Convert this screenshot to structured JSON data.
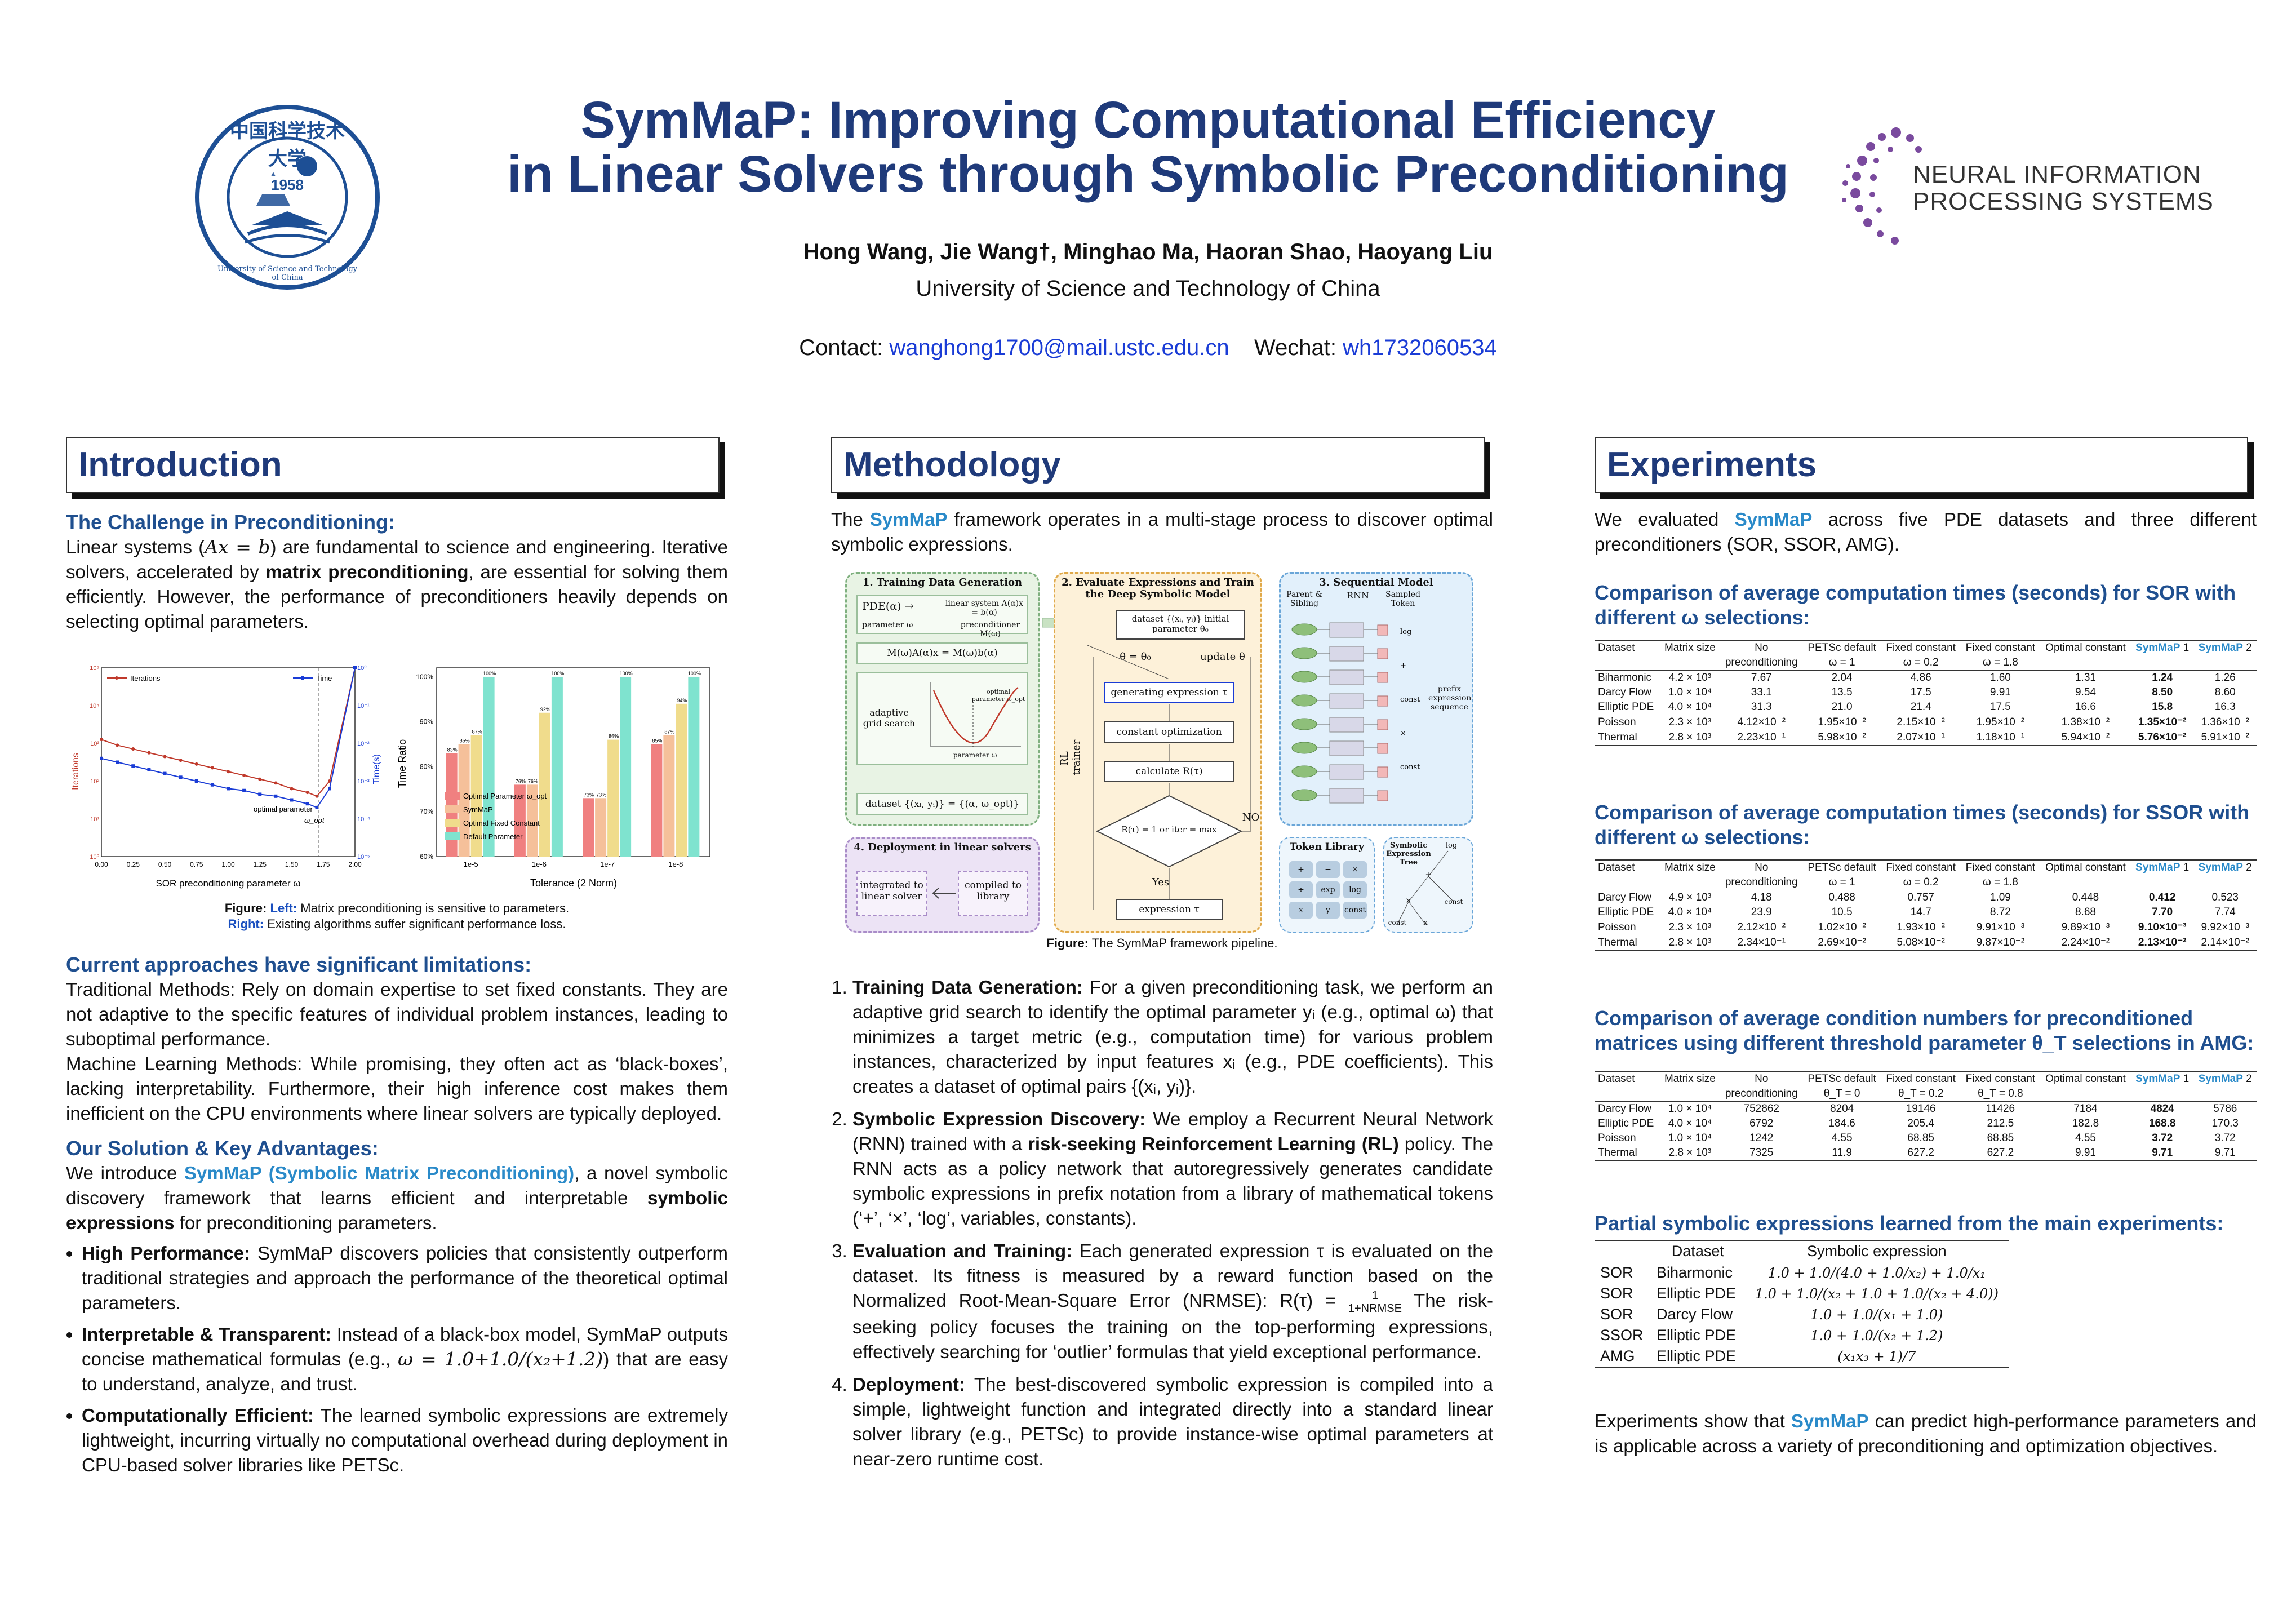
{
  "header": {
    "title_line1": "SymMaP: Improving Computational Efficiency",
    "title_line2": "in Linear Solvers through Symbolic Preconditioning",
    "authors": "Hong Wang, Jie Wang†, Minghao Ma, Haoran Shao, Haoyang Liu",
    "affiliation": "University of Science and Technology of China",
    "contact_label": "Contact:",
    "email": "wanghong1700@mail.ustc.edu.cn",
    "wechat_label": "Wechat:",
    "wechat": "wh1732060534",
    "ustc_logo": {
      "year": "1958",
      "motto": "University of Science and Technology of China",
      "cn": "中国科学技术大学"
    },
    "neurips_logo": {
      "line1": "NEURAL INFORMATION",
      "line2": "PROCESSING SYSTEMS"
    }
  },
  "intro": {
    "heading": "Introduction",
    "sub1": "The Challenge in Preconditioning:",
    "p1a": "Linear systems (",
    "p1math": "Ax = b",
    "p1b": ") are fundamental to science and engineering. Iterative solvers, accelerated by ",
    "p1bold": "matrix preconditioning",
    "p1c": ", are essential for solving them efficiently. However, the performance of preconditioners heavily depends on selecting optimal parameters.",
    "fig_caption_fig": "Figure:",
    "fig_caption_left": "Left:",
    "fig_caption_left_text": "Matrix preconditioning is sensitive to parameters.",
    "fig_caption_right": "Right:",
    "fig_caption_right_text": "Existing algorithms suffer significant performance loss.",
    "sub2": "Current approaches have significant limitations:",
    "p2": "Traditional Methods: Rely on domain expertise to set fixed constants. They are not adaptive to the specific features of individual problem instances, leading to suboptimal performance.",
    "p3": "Machine Learning Methods: While promising, they often act as ‘black-boxes’, lacking interpretability. Furthermore, their high inference cost makes them inefficient on the CPU environments where linear solvers are typically deployed.",
    "sub3": "Our Solution & Key Advantages:",
    "p4a": "We introduce ",
    "p4acc": "SymMaP (Symbolic Matrix Preconditioning)",
    "p4b": ", a novel symbolic discovery framework that learns efficient and interpretable ",
    "p4bold": "symbolic expressions",
    "p4c": " for preconditioning parameters.",
    "b1h": "High Performance:",
    "b1": " SymMaP discovers policies that consistently outperform traditional strategies and approach the performance of the theoretical optimal parameters.",
    "b2h": "Interpretable & Transparent:",
    "b2a": " Instead of a black-box model, SymMaP outputs concise mathematical formulas (e.g., ",
    "b2math": "ω = 1.0+1.0/(x₂+1.2)",
    "b2b": ") that are easy to understand, analyze, and trust.",
    "b3h": "Computationally Efficient:",
    "b3": " The learned symbolic expressions are extremely lightweight, incurring virtually no computational overhead during deployment in CPU-based solver libraries like PETSc."
  },
  "chart_data": [
    {
      "type": "line",
      "title": "",
      "xlabel": "SOR preconditioning parameter ω",
      "ylabel": "Iterations",
      "ylabel_right": "Time(s)",
      "x": [
        0.0,
        0.125,
        0.25,
        0.375,
        0.5,
        0.625,
        0.75,
        0.875,
        1.0,
        1.125,
        1.25,
        1.375,
        1.5,
        1.625,
        1.7,
        1.8,
        2.0
      ],
      "series": [
        {
          "name": "Iterations",
          "color": "#c0392b",
          "values": [
            3.1,
            2.95,
            2.85,
            2.75,
            2.65,
            2.55,
            2.45,
            2.35,
            2.25,
            2.15,
            2.05,
            1.95,
            1.8,
            1.7,
            1.6,
            2.0,
            5.0
          ]
        },
        {
          "name": "Time",
          "color": "#1a3cd6",
          "values": [
            2.6,
            2.5,
            2.4,
            2.3,
            2.2,
            2.1,
            2.0,
            1.9,
            1.8,
            1.75,
            1.65,
            1.6,
            1.5,
            1.4,
            1.3,
            1.8,
            5.0
          ]
        }
      ],
      "xticks": [
        "0.00",
        "0.25",
        "0.50",
        "0.75",
        "1.00",
        "1.25",
        "1.50",
        "1.75",
        "2.00"
      ],
      "yticks": [
        "10⁰",
        "10¹",
        "10²",
        "10³",
        "10⁴",
        "10⁵"
      ],
      "yticks_right": [
        "10⁻⁵",
        "10⁻⁴",
        "10⁻³",
        "10⁻²",
        "10⁻¹",
        "10⁰"
      ],
      "annotation": "optimal parameter",
      "annotation2": "ω_opt",
      "ylim": [
        0,
        5
      ],
      "xlim": [
        0,
        2
      ]
    },
    {
      "type": "bar",
      "title": "",
      "xlabel": "Tolerance (2 Norm)",
      "ylabel": "Time Ratio",
      "categories": [
        "1e-5",
        "1e-6",
        "1e-7",
        "1e-8"
      ],
      "series": [
        {
          "name": "Optimal Parameter ω_opt",
          "color": "#f08080",
          "values": [
            83,
            76,
            73,
            85
          ]
        },
        {
          "name": "SymMaP",
          "color": "#f5c09a",
          "values": [
            85,
            76,
            73,
            87
          ]
        },
        {
          "name": "Optimal Fixed Constant",
          "color": "#f0dc8c",
          "values": [
            87,
            92,
            86,
            94
          ]
        },
        {
          "name": "Default Parameter",
          "color": "#7fe3cf",
          "values": [
            100,
            100,
            100,
            100
          ]
        }
      ],
      "labels": [
        [
          "83%",
          "85%",
          "87%",
          "100%"
        ],
        [
          "76%",
          "76%",
          "92%",
          "100%"
        ],
        [
          "73%",
          "73%",
          "86%",
          "100%"
        ],
        [
          "85%",
          "87%",
          "94%",
          "100%"
        ]
      ],
      "yticks": [
        "60%",
        "70%",
        "80%",
        "90%",
        "100%"
      ],
      "ylim": [
        60,
        102
      ]
    }
  ],
  "method": {
    "heading": "Methodology",
    "intro_a": "The ",
    "intro_acc": "SymMaP",
    "intro_b": " framework operates in a multi-stage process to discover optimal symbolic expressions.",
    "fig_caption_fig": "Figure:",
    "fig_caption_text": "The SymMaP framework pipeline.",
    "diagram": {
      "b1_title": "1. Training Data Generation",
      "b1_pde": "PDE(α) →",
      "b1_linsys": "linear system A(α)x = b(α)",
      "b1_param": "parameter ω",
      "b1_precond": "preconditioner M(ω)",
      "b1_eq": "M(ω)A(α)x = M(ω)b(α)",
      "b1_grid": "adaptive grid search",
      "b1_curve": "optimal parameter ω_opt",
      "b1_axis": "parameter ω",
      "b1_ylab": "computation time",
      "b1_dataset": "dataset {(xᵢ, yᵢ)} = {(α, ω_opt)}",
      "b2_title": "2. Evaluate Expressions and Train the Deep Symbolic Model",
      "b2_dataset": "dataset {(xᵢ, yᵢ)} initial parameter θ₀",
      "b2_theta": "θ = θ₀",
      "b2_update": "update θ",
      "b2_gen": "generating expression τ",
      "b2_const": "constant optimization",
      "b2_calc": "calculate R(τ)",
      "b2_cond": "R(τ) = 1 or iter = max",
      "b2_no": "NO",
      "b2_yes": "Yes",
      "b2_expr": "expression τ",
      "b2_rl": "RL trainer",
      "b3_title": "3. Sequential Model",
      "b3_parent": "Parent & Sibling",
      "b3_rnn": "RNN",
      "b3_sampled": "Sampled Token",
      "b3_prefix": "prefix expression sequence",
      "b3_tokens": [
        "log",
        "+",
        "const",
        "×",
        "const"
      ],
      "b4_title": "Token Library",
      "b4_tokens": [
        "+",
        "−",
        "×",
        "÷",
        "exp",
        "log",
        "x",
        "y",
        "const"
      ],
      "b5_title": "Symbolic Expression Tree",
      "b5_nodes": [
        "log",
        "+",
        "const",
        "×",
        "const",
        "x"
      ],
      "b6_title": "4. Deployment in linear solvers",
      "b6_left": "integrated to linear solver",
      "b6_right": "compiled to library"
    },
    "s1h": "Training Data Generation:",
    "s1": " For a given preconditioning task, we perform an adaptive grid search to identify the optimal parameter yᵢ (e.g., optimal ω) that minimizes a target metric (e.g., computation time) for various problem instances, characterized by input features xᵢ (e.g., PDE coefficients). This creates a dataset of optimal pairs {(xᵢ, yᵢ)}.",
    "s2h": "Symbolic Expression Discovery:",
    "s2a": " We employ a Recurrent Neural Network (RNN) trained with a ",
    "s2bold": "risk-seeking Reinforcement Learning (RL)",
    "s2b": " policy. The RNN acts as a policy network that autoregressively generates candidate symbolic expressions in prefix notation from a library of mathematical tokens (‘+’, ‘×’, ‘log’, variables, constants).",
    "s3h": "Evaluation and Training:",
    "s3a": " Each generated expression τ is evaluated on the dataset. Its fitness is measured by a reward function based on the Normalized Root-Mean-Square Error (NRMSE): R(τ) = ",
    "s3frac_num": "1",
    "s3frac_den": "1+NRMSE",
    "s3b": " The risk-seeking policy focuses the training on the top-performing expressions, effectively searching for ‘outlier’ formulas that yield exceptional performance.",
    "s4h": "Deployment:",
    "s4": " The best-discovered symbolic expression is compiled into a simple, lightweight function and integrated directly into a standard linear solver library (e.g., PETSc) to provide instance-wise optimal parameters at near-zero runtime cost."
  },
  "exp": {
    "heading": "Experiments",
    "intro_a": "We evaluated ",
    "intro_acc": "SymMaP",
    "intro_b": " across five PDE datasets and three different preconditioners (SOR, SSOR, AMG).",
    "t1_title": "Comparison of average computation times (seconds) for SOR with different ω selections:",
    "t2_title": "Comparison of average computation times (seconds) for SSOR with different ω selections:",
    "t3_title": "Comparison of average condition numbers for preconditioned matrices using different threshold parameter θ_T selections in AMG:",
    "hdr": {
      "dataset": "Dataset",
      "matrix": "Matrix size",
      "no": "No",
      "precond": "preconditioning",
      "petsc": "PETSc default",
      "fixed": "Fixed constant",
      "optimal": "Optimal constant",
      "symmap1": "SymMaP",
      "one": "1",
      "symmap2": "SymMaP",
      "two": "2"
    },
    "t1_sub": [
      "ω = 1",
      "ω = 0.2",
      "ω = 1.8"
    ],
    "t1_rows": [
      [
        "Biharmonic",
        "4.2 × 10³",
        "7.67",
        "2.04",
        "4.86",
        "1.60",
        "1.31",
        "1.24",
        "1.26"
      ],
      [
        "Darcy Flow",
        "1.0 × 10⁴",
        "33.1",
        "13.5",
        "17.5",
        "9.91",
        "9.54",
        "8.50",
        "8.60"
      ],
      [
        "Elliptic PDE",
        "4.0 × 10⁴",
        "31.3",
        "21.0",
        "21.4",
        "17.5",
        "16.6",
        "15.8",
        "16.3"
      ],
      [
        "Poisson",
        "2.3 × 10³",
        "4.12×10⁻²",
        "1.95×10⁻²",
        "2.15×10⁻²",
        "1.95×10⁻²",
        "1.38×10⁻²",
        "1.35×10⁻²",
        "1.36×10⁻²"
      ],
      [
        "Thermal",
        "2.8 × 10³",
        "2.23×10⁻¹",
        "5.98×10⁻²",
        "2.07×10⁻¹",
        "1.18×10⁻¹",
        "5.94×10⁻²",
        "5.76×10⁻²",
        "5.91×10⁻²"
      ]
    ],
    "t2_sub": [
      "ω = 1",
      "ω = 0.2",
      "ω = 1.8"
    ],
    "t2_rows": [
      [
        "Darcy Flow",
        "4.9 × 10³",
        "4.18",
        "0.488",
        "0.757",
        "1.09",
        "0.448",
        "0.412",
        "0.523"
      ],
      [
        "Elliptic PDE",
        "4.0 × 10⁴",
        "23.9",
        "10.5",
        "14.7",
        "8.72",
        "8.68",
        "7.70",
        "7.74"
      ],
      [
        "Poisson",
        "2.3 × 10³",
        "2.12×10⁻²",
        "1.02×10⁻²",
        "1.93×10⁻²",
        "9.91×10⁻³",
        "9.89×10⁻³",
        "9.10×10⁻³",
        "9.92×10⁻³"
      ],
      [
        "Thermal",
        "2.8 × 10³",
        "2.34×10⁻¹",
        "2.69×10⁻²",
        "5.08×10⁻²",
        "9.87×10⁻²",
        "2.24×10⁻²",
        "2.13×10⁻²",
        "2.14×10⁻²"
      ]
    ],
    "t3_sub": [
      "θ_T = 0",
      "θ_T = 0.2",
      "θ_T = 0.8"
    ],
    "t3_rows": [
      [
        "Darcy Flow",
        "1.0 × 10⁴",
        "752862",
        "8204",
        "19146",
        "11426",
        "7184",
        "4824",
        "5786"
      ],
      [
        "Elliptic PDE",
        "4.0 × 10⁴",
        "6792",
        "184.6",
        "205.4",
        "212.5",
        "182.8",
        "168.8",
        "170.3"
      ],
      [
        "Poisson",
        "1.0 × 10⁴",
        "1242",
        "4.55",
        "68.85",
        "68.85",
        "4.55",
        "3.72",
        "3.72"
      ],
      [
        "Thermal",
        "2.8 × 10³",
        "7325",
        "11.9",
        "627.2",
        "627.2",
        "9.91",
        "9.71",
        "9.71"
      ]
    ],
    "t4_title": "Partial symbolic expressions learned from the main experiments:",
    "t4_head": [
      "Dataset",
      "Symbolic expression"
    ],
    "t4_rows": [
      [
        "SOR",
        "Biharmonic",
        "1.0 + 1.0/(4.0 + 1.0/x₂) + 1.0/x₁"
      ],
      [
        "SOR",
        "Elliptic PDE",
        "1.0 + 1.0/(x₂ + 1.0 + 1.0/(x₂ + 4.0))"
      ],
      [
        "SOR",
        "Darcy Flow",
        "1.0 + 1.0/(x₁ + 1.0)"
      ],
      [
        "SSOR",
        "Elliptic PDE",
        "1.0 + 1.0/(x₂ + 1.2)"
      ],
      [
        "AMG",
        "Elliptic PDE",
        "(x₁x₃ + 1)/7"
      ]
    ],
    "concl_a": "Experiments show that ",
    "concl_acc": "SymMaP",
    "concl_b": " can predict high-performance parameters and is applicable across a variety of preconditioning and optimization objectives."
  },
  "colors": {
    "title": "#1f3a7a",
    "accent": "#2a8ac9",
    "link": "#1a3cd6"
  }
}
